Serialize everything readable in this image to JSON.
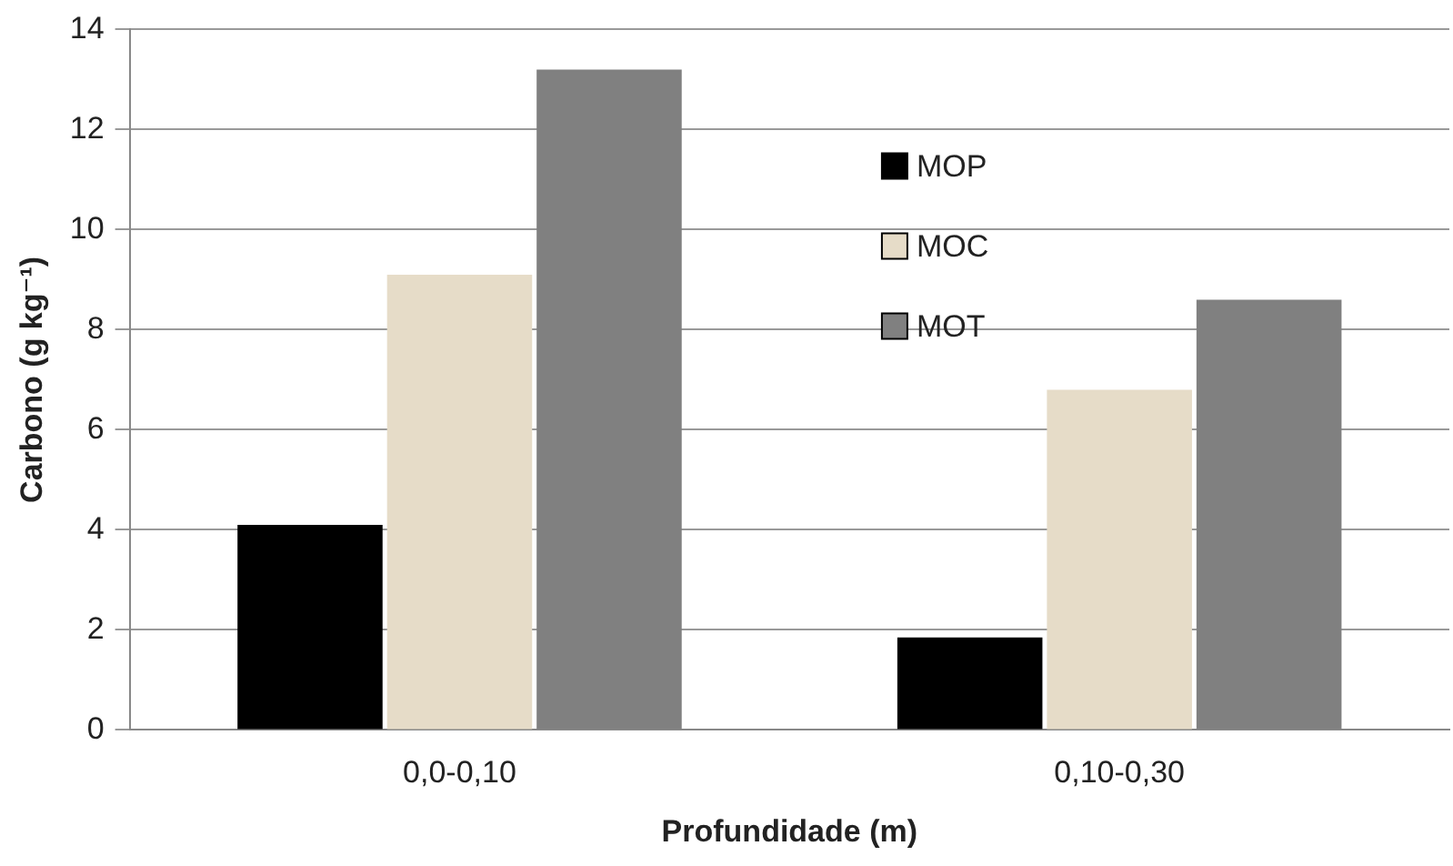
{
  "chart_data": {
    "type": "bar",
    "xlabel": "Profundidade (m)",
    "ylabel": "Carbono (g kg⁻¹)",
    "categories": [
      "0,0-0,10",
      "0,10-0,30"
    ],
    "series": [
      {
        "name": "MOP",
        "color": "#000000",
        "values": [
          4.1,
          1.85
        ]
      },
      {
        "name": "MOC",
        "color": "#e6dcc8",
        "values": [
          9.1,
          6.8
        ]
      },
      {
        "name": "MOT",
        "color": "#808080",
        "values": [
          13.2,
          8.6
        ]
      }
    ],
    "ylim": [
      0,
      14
    ],
    "yticks": [
      0,
      2,
      4,
      6,
      8,
      10,
      12,
      14
    ],
    "grid": "y",
    "legend": "top right"
  }
}
